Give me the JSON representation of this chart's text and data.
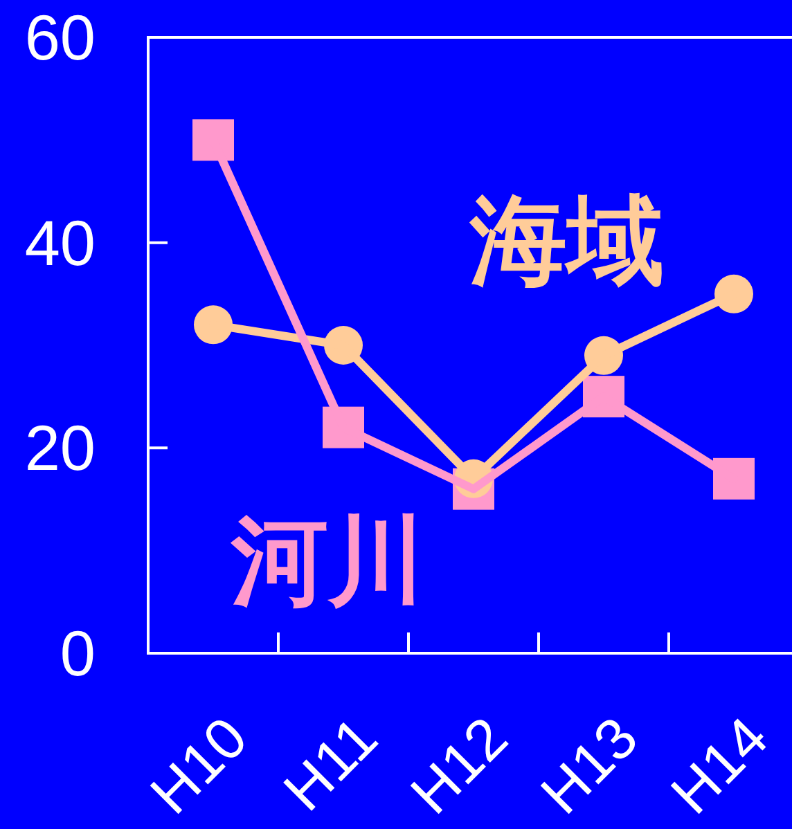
{
  "chart_data": {
    "type": "line",
    "categories": [
      "H10",
      "H11",
      "H12",
      "H13",
      "H14"
    ],
    "series": [
      {
        "name": "河川",
        "color": "#ff99cc",
        "marker": "square",
        "values": [
          50,
          22,
          16,
          25,
          17
        ]
      },
      {
        "name": "海域",
        "color": "#ffcc99",
        "marker": "circle",
        "values": [
          32,
          30,
          17,
          29,
          35
        ]
      }
    ],
    "ylim": [
      0,
      60
    ],
    "yticks": [
      0,
      20,
      40,
      60
    ]
  }
}
